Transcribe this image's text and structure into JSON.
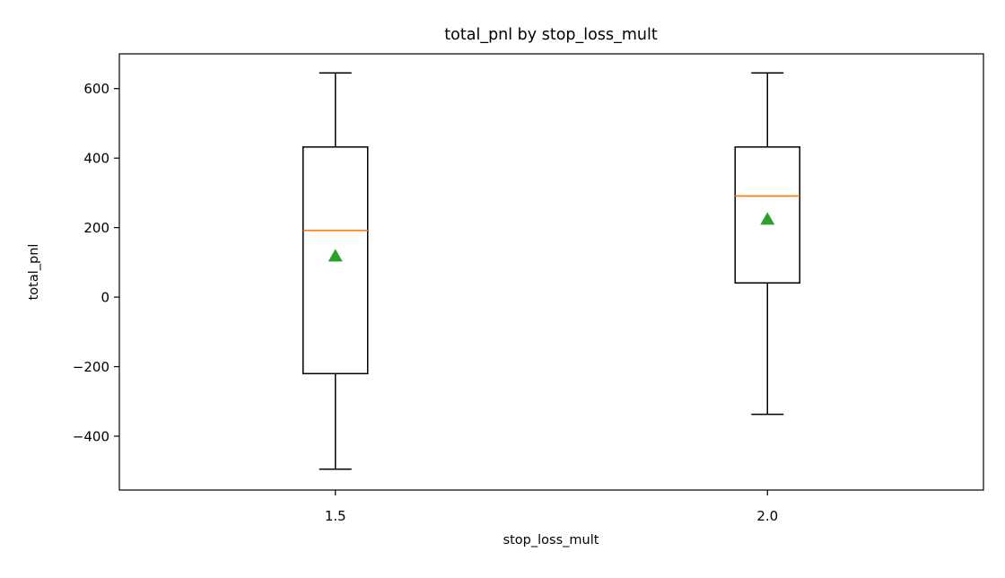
{
  "chart_data": {
    "type": "box",
    "title": "total_pnl by stop_loss_mult",
    "xlabel": "stop_loss_mult",
    "ylabel": "total_pnl",
    "ylim": [
      -555,
      700
    ],
    "yticks": [
      -400,
      -200,
      0,
      200,
      400,
      600
    ],
    "ytick_labels": [
      "−400",
      "−200",
      "0",
      "200",
      "400",
      "600"
    ],
    "grid": false,
    "legend": "none",
    "categories": [
      "1.5",
      "2.0"
    ],
    "boxes": [
      {
        "category": "1.5",
        "whisker_low": -495,
        "q1": -220,
        "median": 192,
        "q3": 432,
        "whisker_high": 645,
        "mean": 118
      },
      {
        "category": "2.0",
        "whisker_low": -337,
        "q1": 41,
        "median": 291,
        "q3": 432,
        "whisker_high": 645,
        "mean": 224
      }
    ],
    "colors": {
      "box": "#000000",
      "median": "#ff7f0e",
      "mean": "#2ca02c",
      "background": "#ffffff"
    }
  }
}
